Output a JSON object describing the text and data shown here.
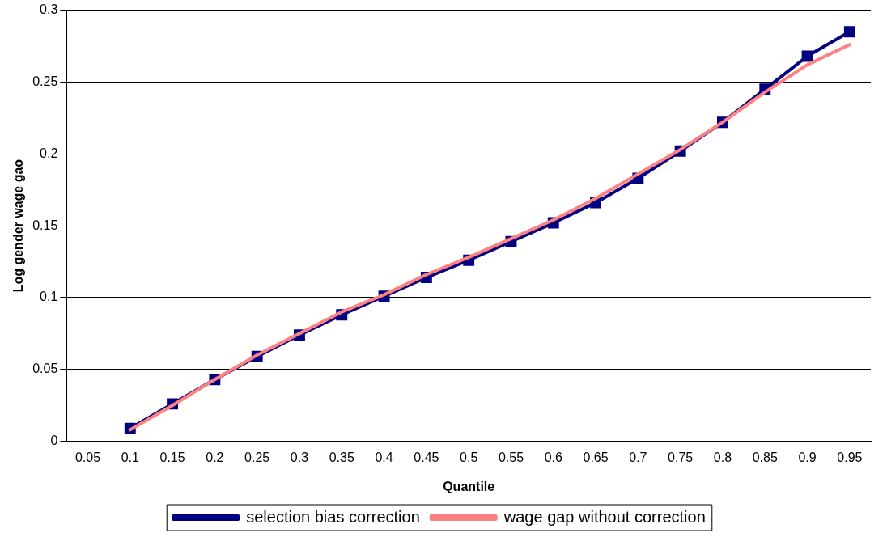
{
  "chart_data": {
    "type": "line",
    "xlabel": "Quantile",
    "ylabel": "Log gender wage gao",
    "categories": [
      "0.05",
      "0.1",
      "0.15",
      "0.2",
      "0.25",
      "0.3",
      "0.35",
      "0.4",
      "0.45",
      "0.5",
      "0.55",
      "0.6",
      "0.65",
      "0.7",
      "0.75",
      "0.8",
      "0.85",
      "0.9",
      "0.95"
    ],
    "series": [
      {
        "name": "selection bias correction",
        "color": "#000080",
        "marker": "square",
        "values": [
          null,
          0.009,
          0.026,
          0.043,
          0.059,
          0.074,
          0.088,
          0.101,
          0.114,
          0.126,
          0.139,
          0.152,
          0.166,
          0.183,
          0.202,
          0.222,
          0.245,
          0.268,
          0.285
        ]
      },
      {
        "name": "wage gap without correction",
        "color": "#ff8080",
        "marker": "none",
        "values": [
          null,
          0.008,
          0.025,
          0.043,
          0.06,
          0.075,
          0.09,
          0.102,
          0.116,
          0.128,
          0.141,
          0.154,
          0.169,
          0.186,
          0.203,
          0.222,
          0.243,
          0.262,
          0.276
        ]
      }
    ],
    "ylim": [
      0,
      0.3
    ],
    "yticks": [
      0,
      0.05,
      0.1,
      0.15,
      0.2,
      0.25,
      0.3
    ],
    "grid": "y",
    "legend": "bottom",
    "line_style": "solid"
  }
}
